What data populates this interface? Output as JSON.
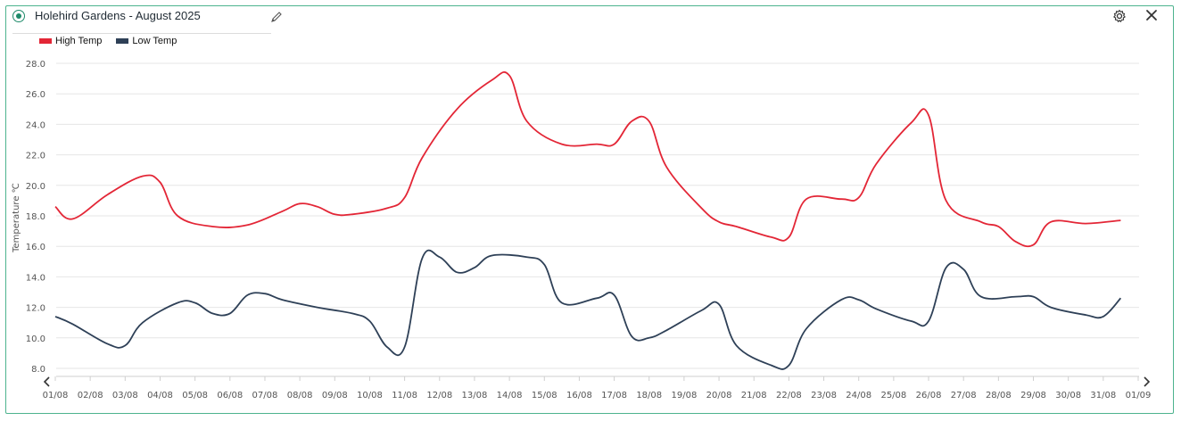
{
  "header": {
    "title": "Holehird Gardens - August 2025"
  },
  "icons": {
    "edit": "pencil-icon",
    "settings": "gear-icon",
    "close": "close-icon",
    "scroll_left": "chevron-left-icon",
    "scroll_right": "chevron-right-icon"
  },
  "colors": {
    "accent": "#1e8a6a",
    "high": "#e32636",
    "low": "#2e4057",
    "border": "#4db38e"
  },
  "chart_data": {
    "type": "line",
    "ylabel": "Temperature ℃",
    "xlabel": "",
    "ylim": [
      8.0,
      28.0
    ],
    "yticks": [
      "8.0",
      "10.0",
      "12.0",
      "14.0",
      "16.0",
      "18.0",
      "20.0",
      "22.0",
      "24.0",
      "26.0",
      "28.0"
    ],
    "categories": [
      "01/08",
      "02/08",
      "03/08",
      "04/08",
      "05/08",
      "06/08",
      "07/08",
      "08/08",
      "09/08",
      "10/08",
      "11/08",
      "12/08",
      "13/08",
      "14/08",
      "15/08",
      "16/08",
      "17/08",
      "18/08",
      "19/08",
      "20/08",
      "21/08",
      "22/08",
      "23/08",
      "24/08",
      "25/08",
      "26/08",
      "27/08",
      "28/08",
      "29/08",
      "30/08",
      "31/08",
      "01/09"
    ],
    "grid": true,
    "legend_position": "top-left",
    "series": [
      {
        "name": "High Temp",
        "color": "#e32636",
        "points": [
          [
            "01/08",
            18.6
          ],
          [
            "01/08 12h",
            17.8
          ],
          [
            "02/08 12h",
            19.4
          ],
          [
            "03/08 12h",
            20.6
          ],
          [
            "04/08",
            20.2
          ],
          [
            "04/08 12h",
            18.0
          ],
          [
            "05/08 12h",
            17.3
          ],
          [
            "06/08 12h",
            17.4
          ],
          [
            "07/08 12h",
            18.3
          ],
          [
            "08/08",
            18.8
          ],
          [
            "08/08 12h",
            18.6
          ],
          [
            "09/08",
            18.1
          ],
          [
            "09/08 12h",
            18.1
          ],
          [
            "10/08 12h",
            18.5
          ],
          [
            "11/08",
            19.2
          ],
          [
            "11/08 12h",
            21.8
          ],
          [
            "12/08 12h",
            25.0
          ],
          [
            "13/08 12h",
            26.9
          ],
          [
            "14/08",
            27.2
          ],
          [
            "14/08 12h",
            24.2
          ],
          [
            "15/08 12h",
            22.7
          ],
          [
            "16/08 12h",
            22.7
          ],
          [
            "17/08",
            22.7
          ],
          [
            "17/08 12h",
            24.2
          ],
          [
            "18/08",
            24.2
          ],
          [
            "18/08 12h",
            21.2
          ],
          [
            "19/08 12h",
            18.5
          ],
          [
            "20/08",
            17.6
          ],
          [
            "20/08 12h",
            17.3
          ],
          [
            "21/08 12h",
            16.6
          ],
          [
            "22/08",
            16.6
          ],
          [
            "22/08 12h",
            19.1
          ],
          [
            "23/08 12h",
            19.1
          ],
          [
            "24/08",
            19.2
          ],
          [
            "24/08 12h",
            21.4
          ],
          [
            "25/08 12h",
            24.1
          ],
          [
            "26/08",
            24.6
          ],
          [
            "26/08 12h",
            19.0
          ],
          [
            "27/08 12h",
            17.6
          ],
          [
            "28/08",
            17.3
          ],
          [
            "28/08 12h",
            16.3
          ],
          [
            "29/08",
            16.1
          ],
          [
            "29/08 12h",
            17.6
          ],
          [
            "30/08 12h",
            17.5
          ],
          [
            "31/08 12h",
            17.7
          ]
        ]
      },
      {
        "name": "Low Temp",
        "color": "#2e4057",
        "points": [
          [
            "01/08",
            11.4
          ],
          [
            "01/08 12h",
            10.9
          ],
          [
            "02/08 12h",
            9.6
          ],
          [
            "03/08",
            9.5
          ],
          [
            "03/08 12h",
            11.0
          ],
          [
            "04/08 12h",
            12.3
          ],
          [
            "05/08",
            12.3
          ],
          [
            "05/08 12h",
            11.6
          ],
          [
            "06/08",
            11.6
          ],
          [
            "06/08 12h",
            12.8
          ],
          [
            "07/08",
            12.9
          ],
          [
            "07/08 12h",
            12.5
          ],
          [
            "08/08 12h",
            12.0
          ],
          [
            "09/08 12h",
            11.6
          ],
          [
            "10/08",
            11.1
          ],
          [
            "10/08 12h",
            9.4
          ],
          [
            "11/08",
            9.4
          ],
          [
            "11/08 12h",
            15.2
          ],
          [
            "12/08",
            15.3
          ],
          [
            "12/08 12h",
            14.3
          ],
          [
            "13/08",
            14.6
          ],
          [
            "13/08 12h",
            15.4
          ],
          [
            "14/08 12h",
            15.3
          ],
          [
            "15/08",
            14.8
          ],
          [
            "15/08 12h",
            12.3
          ],
          [
            "16/08 12h",
            12.6
          ],
          [
            "17/08",
            12.8
          ],
          [
            "17/08 12h",
            10.1
          ],
          [
            "18/08",
            10.0
          ],
          [
            "18/08 12h",
            10.5
          ],
          [
            "19/08 12h",
            11.8
          ],
          [
            "20/08",
            12.2
          ],
          [
            "20/08 12h",
            9.5
          ],
          [
            "21/08 12h",
            8.2
          ],
          [
            "22/08",
            8.2
          ],
          [
            "22/08 12h",
            10.6
          ],
          [
            "23/08 12h",
            12.5
          ],
          [
            "24/08",
            12.5
          ],
          [
            "24/08 12h",
            11.9
          ],
          [
            "25/08 12h",
            11.1
          ],
          [
            "26/08",
            11.1
          ],
          [
            "26/08 12h",
            14.6
          ],
          [
            "27/08",
            14.5
          ],
          [
            "27/08 12h",
            12.7
          ],
          [
            "28/08 12h",
            12.7
          ],
          [
            "29/08",
            12.7
          ],
          [
            "29/08 12h",
            12.0
          ],
          [
            "30/08 12h",
            11.5
          ],
          [
            "31/08",
            11.4
          ],
          [
            "31/08 12h",
            12.6
          ]
        ]
      }
    ]
  }
}
